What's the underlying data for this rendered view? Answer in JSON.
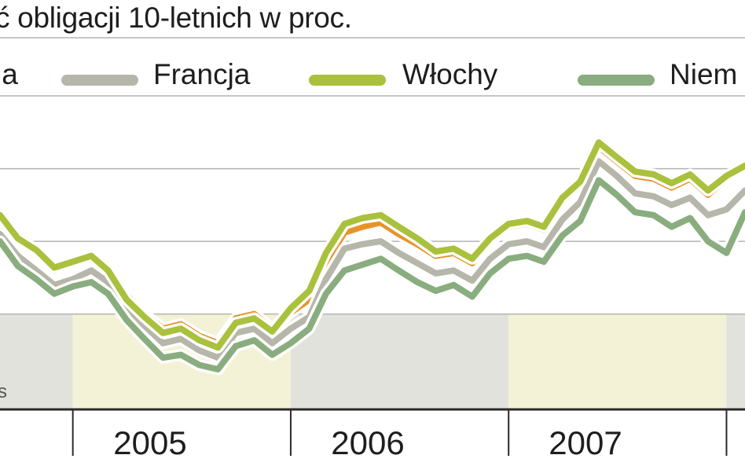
{
  "chart_data": {
    "type": "line",
    "title": "ć obligacji 10-letnich w proc.",
    "x_range": [
      "2004-09",
      "2008-02"
    ],
    "y_range": [
      2.85,
      5.4
    ],
    "y_gridlines": [
      3.5,
      4.0,
      4.5,
      5.0
    ],
    "grid": true,
    "legend_position": "top",
    "xtick_labels": [
      {
        "label": "2005",
        "year": 2005
      },
      {
        "label": "2006",
        "year": 2006
      },
      {
        "label": "2007",
        "year": 2007
      }
    ],
    "x_boundaries": [
      "2005-01-01",
      "2006-01-01",
      "2007-01-01",
      "2008-01-01"
    ],
    "y_axis_label_fragment": "s",
    "legend": [
      {
        "label": "ja",
        "color": "#e8922a"
      },
      {
        "label": "Francja",
        "color": "#b6b6aa"
      },
      {
        "label": "Włochy",
        "color": "#a9c13c"
      },
      {
        "label": "Niem",
        "color": "#8aad7f"
      }
    ],
    "series": [
      {
        "color": "#e8922a",
        "x": [
          "2004-09",
          "2004-10",
          "2004-11",
          "2004-12",
          "2005-01",
          "2005-02",
          "2005-03",
          "2005-04",
          "2005-05",
          "2005-06",
          "2005-07",
          "2005-08",
          "2005-09",
          "2005-10",
          "2005-11",
          "2005-12",
          "2006-01",
          "2006-02",
          "2006-03",
          "2006-04",
          "2006-05",
          "2006-06",
          "2006-07",
          "2006-08",
          "2006-09",
          "2006-10",
          "2006-11",
          "2006-12",
          "2007-01",
          "2007-02",
          "2007-03",
          "2007-04",
          "2007-05",
          "2007-06",
          "2007-07",
          "2007-08",
          "2007-09",
          "2007-10",
          "2007-11",
          "2007-12",
          "2008-01",
          "2008-02"
        ],
        "y": [
          4.15,
          4.0,
          3.92,
          3.8,
          3.85,
          3.9,
          3.82,
          3.63,
          3.5,
          3.4,
          3.43,
          3.35,
          3.3,
          3.47,
          3.5,
          3.4,
          3.51,
          3.6,
          3.86,
          4.06,
          4.1,
          4.13,
          4.05,
          3.98,
          3.9,
          3.92,
          3.85,
          4.0,
          4.1,
          4.12,
          4.08,
          4.28,
          4.39,
          4.65,
          4.55,
          4.45,
          4.43,
          4.37,
          4.43,
          4.32,
          4.43,
          4.5
        ]
      },
      {
        "color": "#b6b6aa",
        "x": [
          "2004-09",
          "2004-10",
          "2004-11",
          "2004-12",
          "2005-01",
          "2005-02",
          "2005-03",
          "2005-04",
          "2005-05",
          "2005-06",
          "2005-07",
          "2005-08",
          "2005-09",
          "2005-10",
          "2005-11",
          "2005-12",
          "2006-01",
          "2006-02",
          "2006-03",
          "2006-04",
          "2006-05",
          "2006-06",
          "2006-07",
          "2006-08",
          "2006-09",
          "2006-10",
          "2006-11",
          "2006-12",
          "2007-01",
          "2007-02",
          "2007-03",
          "2007-04",
          "2007-05",
          "2007-06",
          "2007-07",
          "2007-08",
          "2007-09",
          "2007-10",
          "2007-11",
          "2007-12",
          "2008-01",
          "2008-02"
        ],
        "y": [
          4.05,
          3.9,
          3.8,
          3.7,
          3.74,
          3.8,
          3.72,
          3.55,
          3.42,
          3.3,
          3.33,
          3.25,
          3.2,
          3.37,
          3.4,
          3.3,
          3.4,
          3.48,
          3.74,
          3.95,
          3.98,
          4.0,
          3.92,
          3.85,
          3.78,
          3.8,
          3.73,
          3.88,
          3.98,
          4.0,
          3.96,
          4.15,
          4.27,
          4.55,
          4.45,
          4.33,
          4.31,
          4.25,
          4.3,
          4.18,
          4.22,
          4.35
        ]
      },
      {
        "color": "#a9c13c",
        "x": [
          "2004-09",
          "2004-10",
          "2004-11",
          "2004-12",
          "2005-01",
          "2005-02",
          "2005-03",
          "2005-04",
          "2005-05",
          "2005-06",
          "2005-07",
          "2005-08",
          "2005-09",
          "2005-10",
          "2005-11",
          "2005-12",
          "2006-01",
          "2006-02",
          "2006-03",
          "2006-04",
          "2006-05",
          "2006-06",
          "2006-07",
          "2006-08",
          "2006-09",
          "2006-10",
          "2006-11",
          "2006-12",
          "2007-01",
          "2007-02",
          "2007-03",
          "2007-04",
          "2007-05",
          "2007-06",
          "2007-07",
          "2007-08",
          "2007-09",
          "2007-10",
          "2007-11",
          "2007-12",
          "2008-01",
          "2008-02"
        ],
        "y": [
          4.18,
          4.02,
          3.94,
          3.82,
          3.86,
          3.9,
          3.8,
          3.6,
          3.48,
          3.37,
          3.4,
          3.32,
          3.27,
          3.44,
          3.47,
          3.38,
          3.54,
          3.66,
          3.92,
          4.12,
          4.16,
          4.18,
          4.1,
          4.02,
          3.93,
          3.95,
          3.88,
          4.02,
          4.12,
          4.14,
          4.1,
          4.3,
          4.41,
          4.68,
          4.58,
          4.48,
          4.46,
          4.4,
          4.46,
          4.35,
          4.45,
          4.52
        ]
      },
      {
        "color": "#8aad7f",
        "x": [
          "2004-09",
          "2004-10",
          "2004-11",
          "2004-12",
          "2005-01",
          "2005-02",
          "2005-03",
          "2005-04",
          "2005-05",
          "2005-06",
          "2005-07",
          "2005-08",
          "2005-09",
          "2005-10",
          "2005-11",
          "2005-12",
          "2006-01",
          "2006-02",
          "2006-03",
          "2006-04",
          "2006-05",
          "2006-06",
          "2006-07",
          "2006-08",
          "2006-09",
          "2006-10",
          "2006-11",
          "2006-12",
          "2007-01",
          "2007-02",
          "2007-03",
          "2007-04",
          "2007-05",
          "2007-06",
          "2007-07",
          "2007-08",
          "2007-09",
          "2007-10",
          "2007-11",
          "2007-12",
          "2008-01",
          "2008-02"
        ],
        "y": [
          4.0,
          3.83,
          3.74,
          3.64,
          3.69,
          3.72,
          3.64,
          3.46,
          3.33,
          3.2,
          3.22,
          3.15,
          3.12,
          3.28,
          3.32,
          3.22,
          3.3,
          3.4,
          3.64,
          3.8,
          3.84,
          3.88,
          3.8,
          3.72,
          3.66,
          3.7,
          3.62,
          3.78,
          3.88,
          3.9,
          3.86,
          4.04,
          4.14,
          4.42,
          4.32,
          4.2,
          4.18,
          4.1,
          4.16,
          4.0,
          3.92,
          4.2
        ]
      }
    ]
  }
}
